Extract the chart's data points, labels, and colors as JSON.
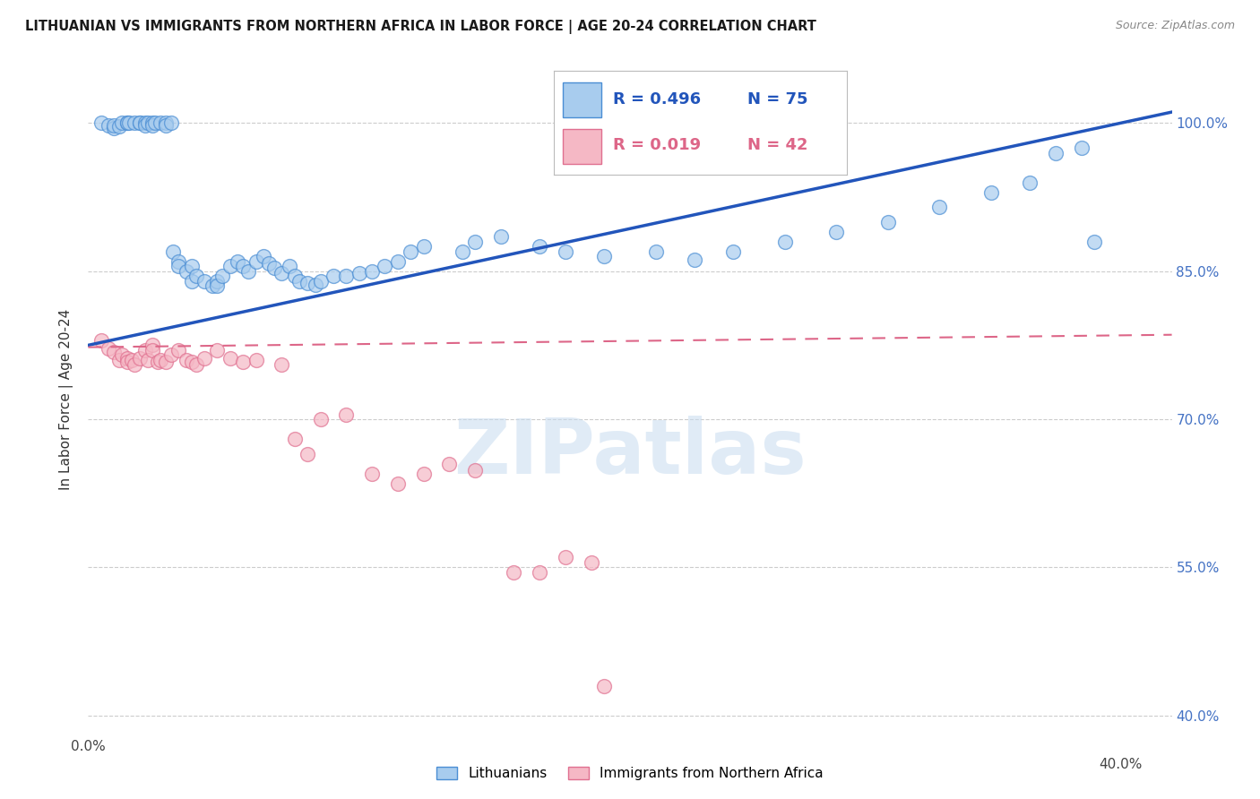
{
  "title": "LITHUANIAN VS IMMIGRANTS FROM NORTHERN AFRICA IN LABOR FORCE | AGE 20-24 CORRELATION CHART",
  "source": "Source: ZipAtlas.com",
  "ylabel": "In Labor Force | Age 20-24",
  "xlim": [
    0.0,
    0.42
  ],
  "ylim": [
    0.38,
    1.06
  ],
  "xtick_positions": [
    0.0,
    0.05,
    0.1,
    0.15,
    0.2,
    0.25,
    0.3,
    0.35,
    0.4
  ],
  "ytick_positions": [
    0.4,
    0.55,
    0.7,
    0.85,
    1.0
  ],
  "blue_r": "R = 0.496",
  "blue_n": "N = 75",
  "pink_r": "R = 0.019",
  "pink_n": "N = 42",
  "blue_fill": "#A8CCEE",
  "blue_edge": "#4B8ED4",
  "pink_fill": "#F5B8C5",
  "pink_edge": "#E07090",
  "blue_line": "#2255BB",
  "pink_line": "#DD6688",
  "grid_color": "#CCCCCC",
  "right_tick_color": "#4472C4",
  "watermark": "ZIPatlas",
  "watermark_color": "#C8DCF0",
  "blue_x": [
    0.005,
    0.008,
    0.01,
    0.01,
    0.012,
    0.013,
    0.015,
    0.015,
    0.016,
    0.018,
    0.02,
    0.02,
    0.022,
    0.022,
    0.023,
    0.025,
    0.025,
    0.026,
    0.028,
    0.03,
    0.03,
    0.032,
    0.033,
    0.035,
    0.035,
    0.038,
    0.04,
    0.04,
    0.042,
    0.045,
    0.048,
    0.05,
    0.05,
    0.052,
    0.055,
    0.058,
    0.06,
    0.062,
    0.065,
    0.068,
    0.07,
    0.072,
    0.075,
    0.078,
    0.08,
    0.082,
    0.085,
    0.088,
    0.09,
    0.095,
    0.1,
    0.105,
    0.11,
    0.115,
    0.12,
    0.125,
    0.13,
    0.145,
    0.15,
    0.16,
    0.175,
    0.185,
    0.2,
    0.22,
    0.235,
    0.25,
    0.27,
    0.29,
    0.31,
    0.33,
    0.35,
    0.365,
    0.375,
    0.385,
    0.39
  ],
  "blue_y": [
    1.0,
    0.998,
    0.995,
    0.998,
    0.997,
    1.0,
    1.0,
    1.0,
    1.0,
    1.0,
    1.0,
    1.0,
    1.0,
    0.998,
    1.0,
    1.0,
    0.998,
    1.0,
    1.0,
    1.0,
    0.998,
    1.0,
    0.87,
    0.86,
    0.855,
    0.85,
    0.855,
    0.84,
    0.845,
    0.84,
    0.835,
    0.84,
    0.835,
    0.845,
    0.855,
    0.86,
    0.855,
    0.85,
    0.86,
    0.865,
    0.858,
    0.853,
    0.848,
    0.855,
    0.845,
    0.84,
    0.838,
    0.836,
    0.84,
    0.845,
    0.845,
    0.848,
    0.85,
    0.855,
    0.86,
    0.87,
    0.875,
    0.87,
    0.88,
    0.885,
    0.875,
    0.87,
    0.865,
    0.87,
    0.862,
    0.87,
    0.88,
    0.89,
    0.9,
    0.915,
    0.93,
    0.94,
    0.97,
    0.975,
    0.88
  ],
  "pink_x": [
    0.005,
    0.008,
    0.01,
    0.012,
    0.013,
    0.015,
    0.015,
    0.017,
    0.018,
    0.02,
    0.022,
    0.023,
    0.025,
    0.025,
    0.027,
    0.028,
    0.03,
    0.032,
    0.035,
    0.038,
    0.04,
    0.042,
    0.045,
    0.05,
    0.055,
    0.06,
    0.065,
    0.075,
    0.08,
    0.085,
    0.09,
    0.1,
    0.11,
    0.12,
    0.13,
    0.14,
    0.15,
    0.165,
    0.175,
    0.185,
    0.195,
    0.2
  ],
  "pink_y": [
    0.78,
    0.772,
    0.768,
    0.76,
    0.765,
    0.762,
    0.758,
    0.76,
    0.755,
    0.762,
    0.77,
    0.76,
    0.775,
    0.77,
    0.758,
    0.76,
    0.758,
    0.765,
    0.77,
    0.76,
    0.758,
    0.755,
    0.762,
    0.77,
    0.762,
    0.758,
    0.76,
    0.755,
    0.68,
    0.665,
    0.7,
    0.705,
    0.645,
    0.635,
    0.645,
    0.655,
    0.648,
    0.545,
    0.545,
    0.56,
    0.555,
    0.43
  ]
}
